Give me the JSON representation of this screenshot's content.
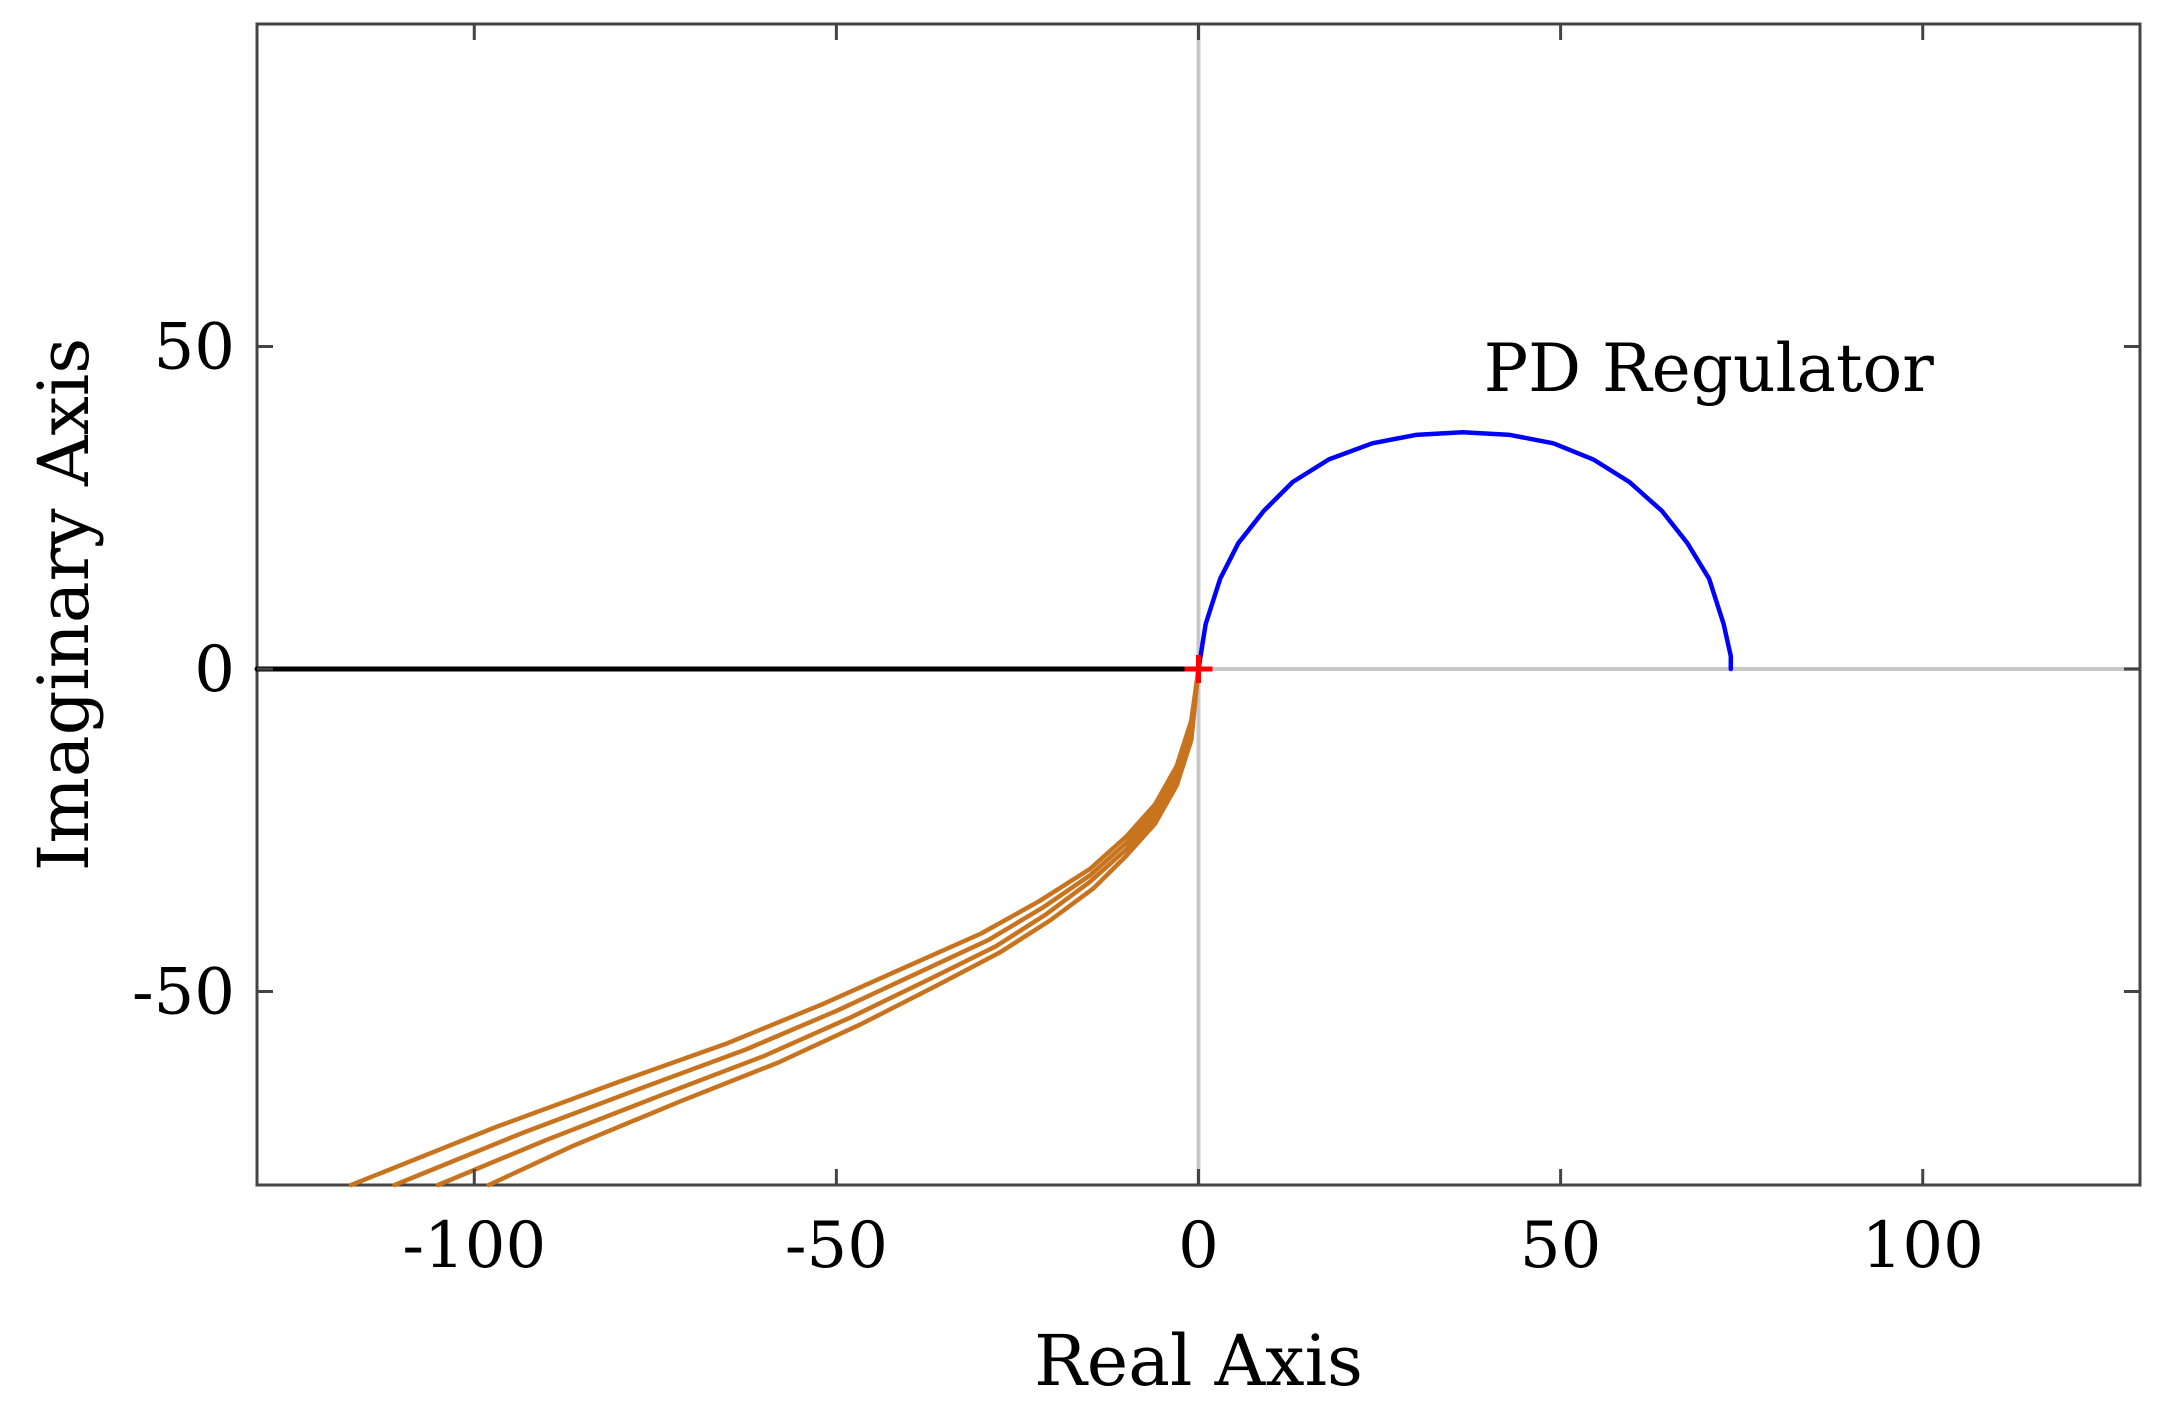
{
  "chart_data": {
    "type": "line",
    "xlabel": "Real Axis",
    "ylabel": "Imaginary Axis",
    "xlim": [
      -130,
      130
    ],
    "ylim": [
      -80,
      100
    ],
    "xticks": [
      -100,
      -50,
      0,
      50,
      100
    ],
    "yticks": [
      -50,
      0,
      50
    ],
    "grid": false,
    "annotations": [
      {
        "text": "PD Regulator",
        "x": 67,
        "y": 47
      }
    ],
    "marker": {
      "x": 0,
      "y": 0,
      "color": "#ff0000",
      "symbol": "+"
    },
    "series": [
      {
        "color": "#0000ff",
        "x": [
          0,
          1,
          3,
          5.5,
          9,
          13,
          18,
          24,
          30,
          36.5,
          43,
          49,
          54.5,
          59.5,
          64,
          67.5,
          70.5,
          72.5,
          73.5,
          73.5
        ],
        "y": [
          0,
          7,
          14,
          19.5,
          24.5,
          29,
          32.5,
          35,
          36.3,
          36.7,
          36.3,
          35,
          32.5,
          29,
          24.5,
          19.5,
          14,
          7,
          2,
          0
        ]
      },
      {
        "color": "#000000",
        "x": [
          -130,
          0
        ],
        "y": [
          0,
          0
        ]
      },
      {
        "color": "#c8741f",
        "x": [
          0,
          -1,
          -3,
          -6,
          -10,
          -15,
          -22,
          -30,
          -40,
          -52,
          -65,
          -80,
          -97,
          -117
        ],
        "y": [
          0,
          -8,
          -15,
          -21,
          -26,
          -31,
          -36,
          -41,
          -46,
          -52,
          -58,
          -64,
          -71,
          -80
        ]
      },
      {
        "color": "#c8741f",
        "x": [
          0,
          -1,
          -3,
          -6,
          -10,
          -15,
          -21.5,
          -29,
          -38.5,
          -50,
          -62.5,
          -77,
          -93.5,
          -111
        ],
        "y": [
          0,
          -9,
          -16,
          -22,
          -27,
          -32,
          -37,
          -42,
          -47,
          -53,
          -59,
          -65,
          -72,
          -80
        ]
      },
      {
        "color": "#c8741f",
        "x": [
          0,
          -1,
          -3,
          -6,
          -10,
          -15,
          -21,
          -28,
          -37,
          -48,
          -60,
          -74,
          -90,
          -105
        ],
        "y": [
          0,
          -10,
          -17,
          -23,
          -28,
          -33,
          -38,
          -43,
          -48,
          -54,
          -60,
          -66,
          -73,
          -80
        ]
      },
      {
        "color": "#c8741f",
        "x": [
          0,
          -1,
          -3,
          -6,
          -10,
          -14.5,
          -20.5,
          -27.5,
          -36,
          -46.5,
          -58,
          -71.5,
          -86.5,
          -98
        ],
        "y": [
          0,
          -11,
          -18,
          -24,
          -29,
          -34,
          -39,
          -44,
          -49,
          -55,
          -61,
          -67,
          -74,
          -80
        ]
      }
    ],
    "colors": {
      "axis_box": "#444444",
      "zero_lines": "#c8c8c8"
    }
  }
}
